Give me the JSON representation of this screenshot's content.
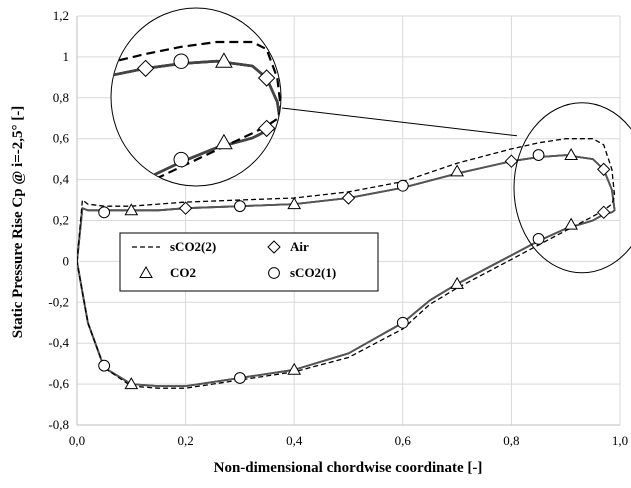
{
  "chart_data": {
    "type": "line",
    "xlabel": "Non-dimensional chordwise coordinate [-]",
    "ylabel": "Static Pressure Rise Cp @ i=-2,5° [-]",
    "xlim": [
      0,
      1
    ],
    "ylim": [
      -0.8,
      1.2
    ],
    "x_ticks": [
      "0,0",
      "0,2",
      "0,4",
      "0,6",
      "0,8",
      "1,0"
    ],
    "y_ticks": [
      "-0,8",
      "-0,6",
      "-0,4",
      "-0,2",
      "0",
      "0,2",
      "0,4",
      "0,6",
      "0,8",
      "1",
      "1,2"
    ],
    "grid": true,
    "legend": {
      "placement": "center-left",
      "entries": [
        "sCO2(2)",
        "Air",
        "CO2",
        "sCO2(1)"
      ]
    },
    "inset": {
      "type": "zoom",
      "region": "leading edge, magnified near x=0.9-1.0"
    },
    "series": [
      {
        "name": "Air",
        "marker": "diamond",
        "line": "solid",
        "color": "#555555",
        "x": [
          0.0,
          0.01,
          0.02,
          0.05,
          0.1,
          0.15,
          0.2,
          0.3,
          0.4,
          0.5,
          0.6,
          0.7,
          0.8,
          0.85,
          0.9,
          0.95,
          0.97,
          0.985,
          0.99,
          0.985,
          0.97,
          0.95,
          0.9,
          0.85,
          0.8,
          0.75,
          0.7,
          0.65,
          0.6,
          0.5,
          0.4,
          0.3,
          0.2,
          0.15,
          0.1,
          0.05,
          0.02,
          0.01,
          0.0
        ],
        "y": [
          0.0,
          0.26,
          0.25,
          0.25,
          0.25,
          0.25,
          0.26,
          0.27,
          0.28,
          0.31,
          0.36,
          0.43,
          0.49,
          0.51,
          0.52,
          0.5,
          0.45,
          0.35,
          0.25,
          0.24,
          0.23,
          0.2,
          0.16,
          0.1,
          0.03,
          -0.04,
          -0.11,
          -0.19,
          -0.3,
          -0.45,
          -0.53,
          -0.57,
          -0.61,
          -0.61,
          -0.6,
          -0.52,
          -0.3,
          -0.15,
          0.0
        ],
        "markers_x": [
          0.2,
          0.5,
          0.8,
          0.97,
          0.97
        ],
        "markers_y": [
          0.26,
          0.31,
          0.49,
          0.45,
          0.24
        ]
      },
      {
        "name": "CO2",
        "marker": "triangle",
        "line": "solid",
        "color": "#555555",
        "x": [
          0.0,
          0.01,
          0.02,
          0.05,
          0.1,
          0.15,
          0.2,
          0.3,
          0.4,
          0.5,
          0.6,
          0.7,
          0.8,
          0.85,
          0.9,
          0.95,
          0.97,
          0.985,
          0.99,
          0.985,
          0.97,
          0.95,
          0.9,
          0.85,
          0.8,
          0.75,
          0.7,
          0.65,
          0.6,
          0.5,
          0.4,
          0.3,
          0.2,
          0.15,
          0.1,
          0.05,
          0.02,
          0.01,
          0.0
        ],
        "y": [
          0.0,
          0.26,
          0.25,
          0.25,
          0.25,
          0.25,
          0.26,
          0.27,
          0.28,
          0.31,
          0.36,
          0.43,
          0.49,
          0.51,
          0.52,
          0.5,
          0.45,
          0.35,
          0.25,
          0.24,
          0.23,
          0.2,
          0.16,
          0.1,
          0.03,
          -0.04,
          -0.11,
          -0.19,
          -0.3,
          -0.45,
          -0.53,
          -0.57,
          -0.61,
          -0.61,
          -0.6,
          -0.52,
          -0.3,
          -0.15,
          0.0
        ],
        "markers_x": [
          0.1,
          0.4,
          0.7,
          0.91,
          0.91,
          0.7,
          0.4,
          0.1
        ],
        "markers_y": [
          0.25,
          0.28,
          0.44,
          0.52,
          0.18,
          -0.11,
          -0.53,
          -0.6
        ]
      },
      {
        "name": "sCO2(1)",
        "marker": "circle",
        "line": "solid",
        "color": "#555555",
        "x": [
          0.0,
          0.01,
          0.02,
          0.05,
          0.1,
          0.15,
          0.2,
          0.3,
          0.4,
          0.5,
          0.6,
          0.7,
          0.8,
          0.85,
          0.9,
          0.95,
          0.97,
          0.985,
          0.99,
          0.985,
          0.97,
          0.95,
          0.9,
          0.85,
          0.8,
          0.75,
          0.7,
          0.65,
          0.6,
          0.5,
          0.4,
          0.3,
          0.2,
          0.15,
          0.1,
          0.05,
          0.02,
          0.01,
          0.0
        ],
        "y": [
          0.0,
          0.26,
          0.25,
          0.25,
          0.25,
          0.25,
          0.26,
          0.27,
          0.28,
          0.31,
          0.36,
          0.43,
          0.49,
          0.51,
          0.52,
          0.5,
          0.45,
          0.35,
          0.25,
          0.24,
          0.23,
          0.2,
          0.16,
          0.1,
          0.03,
          -0.04,
          -0.11,
          -0.19,
          -0.3,
          -0.45,
          -0.53,
          -0.57,
          -0.61,
          -0.61,
          -0.6,
          -0.52,
          -0.3,
          -0.15,
          0.0
        ],
        "markers_x": [
          0.05,
          0.3,
          0.6,
          0.85,
          0.85,
          0.6,
          0.3,
          0.05
        ],
        "markers_y": [
          0.24,
          0.27,
          0.37,
          0.52,
          0.11,
          -0.3,
          -0.57,
          -0.51
        ]
      },
      {
        "name": "sCO2(2)",
        "marker": "none",
        "line": "dashed",
        "color": "#000000",
        "x": [
          0.0,
          0.01,
          0.02,
          0.05,
          0.1,
          0.15,
          0.2,
          0.3,
          0.4,
          0.5,
          0.6,
          0.7,
          0.8,
          0.85,
          0.9,
          0.95,
          0.97,
          0.985,
          0.99,
          0.985,
          0.97,
          0.95,
          0.9,
          0.85,
          0.8,
          0.75,
          0.7,
          0.65,
          0.6,
          0.5,
          0.4,
          0.3,
          0.2,
          0.15,
          0.1,
          0.05,
          0.02,
          0.01,
          0.0
        ],
        "y": [
          0.0,
          0.3,
          0.28,
          0.27,
          0.27,
          0.28,
          0.29,
          0.3,
          0.31,
          0.34,
          0.39,
          0.48,
          0.55,
          0.58,
          0.6,
          0.6,
          0.57,
          0.45,
          0.32,
          0.28,
          0.25,
          0.22,
          0.15,
          0.08,
          0.01,
          -0.06,
          -0.13,
          -0.21,
          -0.33,
          -0.47,
          -0.54,
          -0.58,
          -0.62,
          -0.62,
          -0.61,
          -0.52,
          -0.3,
          -0.15,
          0.0
        ]
      }
    ]
  }
}
